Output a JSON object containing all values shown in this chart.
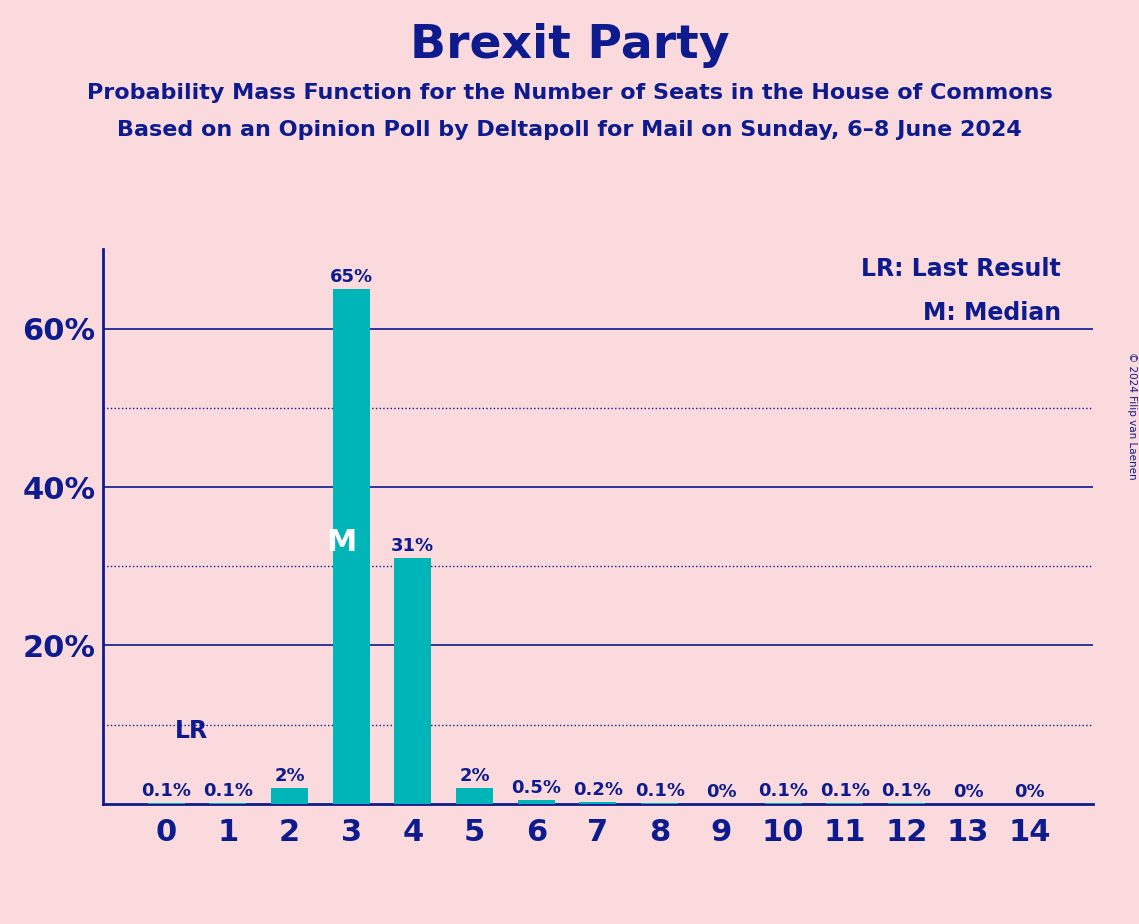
{
  "title": "Brexit Party",
  "subtitle1": "Probability Mass Function for the Number of Seats in the House of Commons",
  "subtitle2": "Based on an Opinion Poll by Deltapoll for Mail on Sunday, 6–8 June 2024",
  "copyright": "© 2024 Filip van Laenen",
  "categories": [
    0,
    1,
    2,
    3,
    4,
    5,
    6,
    7,
    8,
    9,
    10,
    11,
    12,
    13,
    14
  ],
  "values": [
    0.1,
    0.1,
    2.0,
    65.0,
    31.0,
    2.0,
    0.5,
    0.2,
    0.1,
    0.0,
    0.1,
    0.1,
    0.1,
    0.0,
    0.0
  ],
  "bar_labels": [
    "0.1%",
    "0.1%",
    "2%",
    "65%",
    "31%",
    "2%",
    "0.5%",
    "0.2%",
    "0.1%",
    "0%",
    "0.1%",
    "0.1%",
    "0.1%",
    "0%",
    "0%"
  ],
  "bar_color": "#00B5B8",
  "background_color": "#FADADD",
  "text_color": "#0D1B8E",
  "ylim": [
    0,
    70
  ],
  "yticks": [
    20,
    40,
    60
  ],
  "ytick_labels": [
    "20%",
    "40%",
    "60%"
  ],
  "solid_gridlines": [
    20,
    40,
    60
  ],
  "dotted_gridlines": [
    10,
    30,
    50
  ],
  "median_bar": 3,
  "median_label": "M",
  "lr_bar": 0,
  "lr_label": "LR",
  "legend_text1": "LR: Last Result",
  "legend_text2": "M: Median",
  "title_fontsize": 34,
  "subtitle_fontsize": 16,
  "bar_label_fontsize": 13,
  "axis_label_fontsize": 22,
  "legend_fontsize": 17,
  "median_label_fontsize": 22,
  "lr_label_fontsize": 17
}
